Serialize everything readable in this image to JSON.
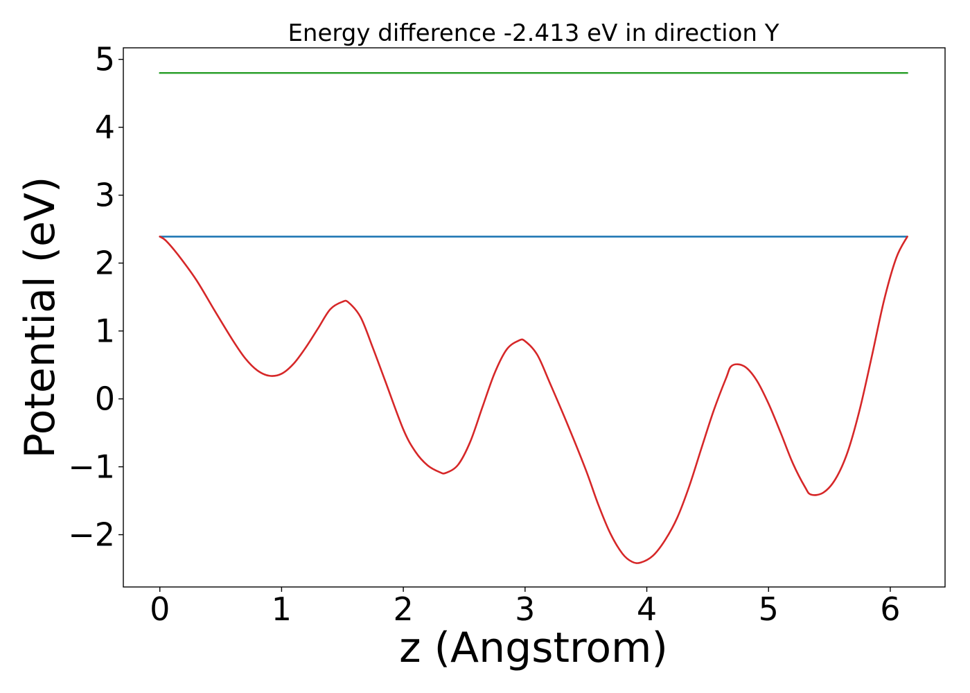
{
  "chart_data": {
    "type": "line",
    "title": "Energy difference -2.413 eV in direction Y",
    "xlabel": "z (Angstrom)",
    "ylabel": "Potential (eV)",
    "xlim": [
      -0.3,
      6.45
    ],
    "ylim": [
      -2.77,
      5.17
    ],
    "xticks": [
      0,
      1,
      2,
      3,
      4,
      5,
      6
    ],
    "xtick_labels": [
      "0",
      "1",
      "2",
      "3",
      "4",
      "5",
      "6"
    ],
    "yticks": [
      -2,
      -1,
      0,
      1,
      2,
      3,
      4,
      5
    ],
    "ytick_labels": [
      "−2",
      "−1",
      "0",
      "1",
      "2",
      "3",
      "4",
      "5"
    ],
    "grid": false,
    "series": [
      {
        "color": "#2ca02c",
        "x": [
          0,
          6.14
        ],
        "y": [
          4.8,
          4.8
        ]
      },
      {
        "color": "#1f77b4",
        "x": [
          0,
          6.14
        ],
        "y": [
          2.39,
          2.39
        ]
      },
      {
        "color": "#d62728",
        "x": [
          0,
          0.05,
          0.15,
          0.3,
          0.45,
          0.6,
          0.7,
          0.8,
          0.9,
          1.0,
          1.1,
          1.2,
          1.3,
          1.4,
          1.5,
          1.55,
          1.65,
          1.75,
          1.85,
          2.0,
          2.1,
          2.2,
          2.3,
          2.35,
          2.45,
          2.55,
          2.65,
          2.75,
          2.85,
          2.95,
          3.0,
          3.1,
          3.2,
          3.35,
          3.5,
          3.6,
          3.7,
          3.8,
          3.88,
          3.95,
          4.05,
          4.15,
          4.25,
          4.35,
          4.45,
          4.55,
          4.65,
          4.7,
          4.8,
          4.9,
          5.0,
          5.1,
          5.2,
          5.3,
          5.35,
          5.45,
          5.55,
          5.65,
          5.75,
          5.85,
          5.95,
          6.05,
          6.14
        ],
        "y": [
          2.39,
          2.33,
          2.12,
          1.75,
          1.3,
          0.86,
          0.6,
          0.42,
          0.34,
          0.37,
          0.52,
          0.76,
          1.04,
          1.32,
          1.43,
          1.42,
          1.2,
          0.75,
          0.27,
          -0.45,
          -0.78,
          -0.98,
          -1.08,
          -1.09,
          -0.97,
          -0.63,
          -0.12,
          0.38,
          0.73,
          0.86,
          0.85,
          0.65,
          0.25,
          -0.38,
          -1.05,
          -1.55,
          -1.98,
          -2.28,
          -2.4,
          -2.41,
          -2.31,
          -2.08,
          -1.75,
          -1.28,
          -0.72,
          -0.17,
          0.3,
          0.49,
          0.48,
          0.28,
          -0.07,
          -0.5,
          -0.95,
          -1.3,
          -1.41,
          -1.38,
          -1.18,
          -0.78,
          -0.15,
          0.64,
          1.46,
          2.08,
          2.39
        ]
      }
    ]
  }
}
